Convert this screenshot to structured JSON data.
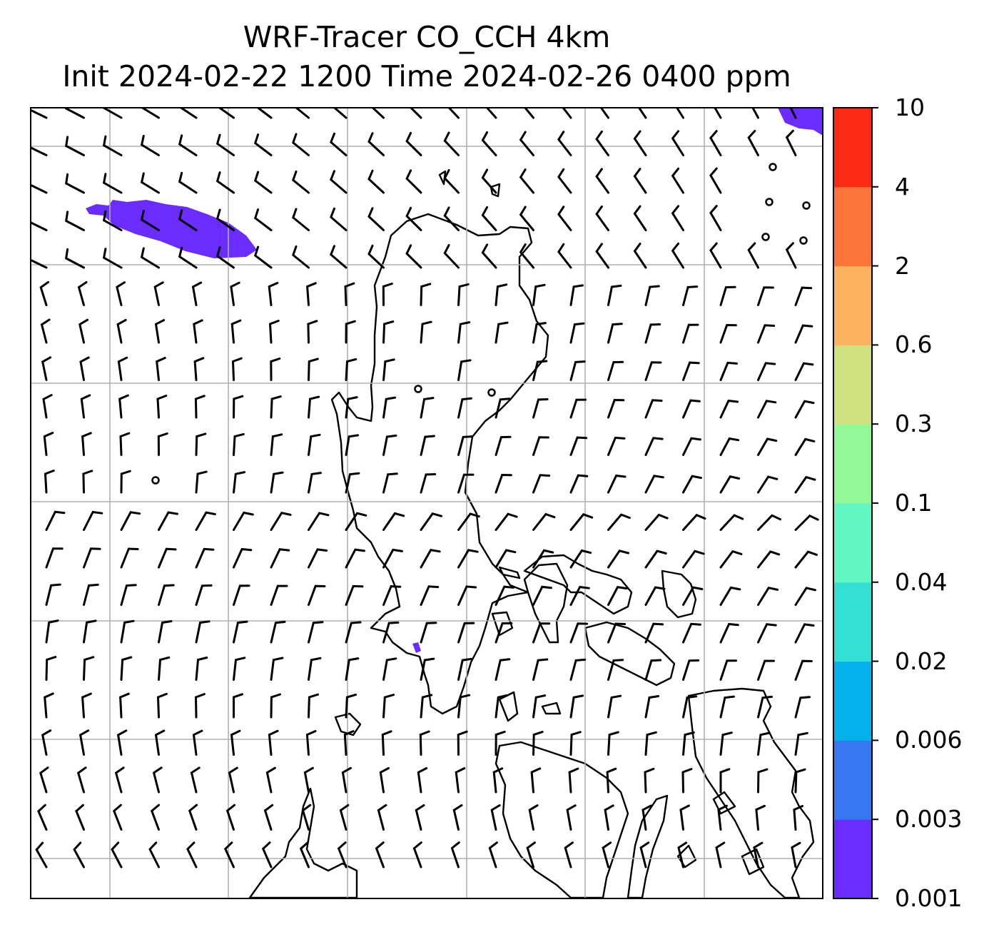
{
  "title": {
    "line1": "WRF-Tracer CO_CCH 4km",
    "line2": "Init 2024-02-22 1200 Time 2024-02-26 0400 ppm"
  },
  "colorbar": {
    "levels": [
      "0.001",
      "0.003",
      "0.006",
      "0.02",
      "0.04",
      "0.1",
      "0.3",
      "0.6",
      "2",
      "4",
      "10"
    ],
    "colors": [
      "#6a2cff",
      "#3877f2",
      "#03b2ea",
      "#32e0d4",
      "#62f7c0",
      "#93f998",
      "#cfe280",
      "#fcb25f",
      "#fc7538",
      "#fa2a14"
    ]
  },
  "map": {
    "grid": "on",
    "wind_barbs": "on",
    "tracer_color": "#6a2cff"
  }
}
